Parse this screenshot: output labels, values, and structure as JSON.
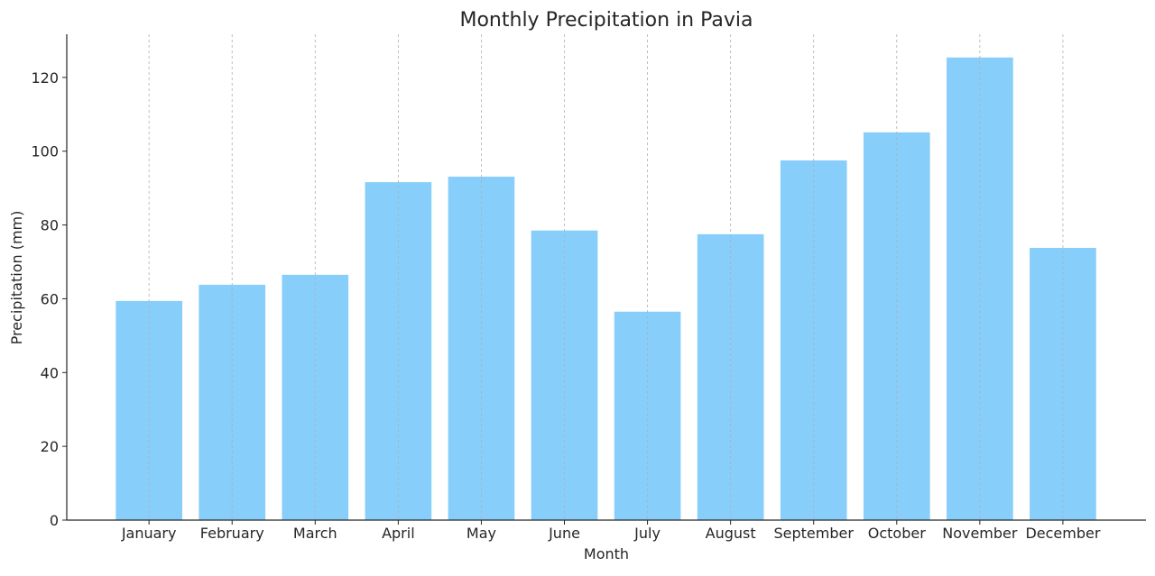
{
  "chart_data": {
    "type": "bar",
    "title": "Monthly Precipitation in Pavia",
    "xlabel": "Month",
    "ylabel": "Precipitation (mm)",
    "categories": [
      "January",
      "February",
      "March",
      "April",
      "May",
      "June",
      "July",
      "August",
      "September",
      "October",
      "November",
      "December"
    ],
    "values": [
      59.4,
      63.8,
      66.5,
      91.6,
      93.1,
      78.5,
      56.5,
      77.5,
      97.5,
      105.1,
      125.4,
      73.8
    ],
    "ylim": [
      0,
      131.7
    ],
    "yticks": [
      0,
      20,
      40,
      60,
      80,
      100,
      120
    ],
    "grid": "vertical dashed at categories",
    "bar_color": "#87CEFA"
  }
}
